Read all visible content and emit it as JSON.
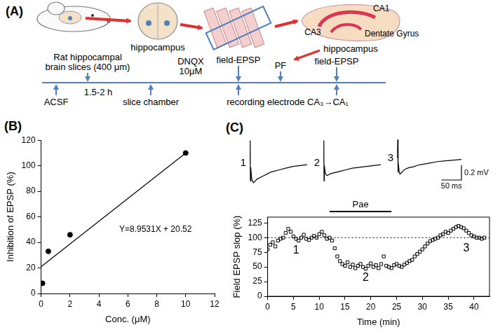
{
  "diagram": {
    "panel_label": "(A)",
    "labels": {
      "brain": "hippocampus",
      "slice": "hippocampus",
      "ca1": "CA1",
      "ca3": "CA3",
      "dentate_gyrus": "Dentate Gyrus"
    },
    "timeline": {
      "above": [
        [
          "Rat hippocampal",
          "brain slices (400 μm)"
        ],
        [
          "DNQX",
          "10μM"
        ],
        [
          "field-EPSP"
        ],
        [
          "PF"
        ],
        [
          "field-EPSP"
        ]
      ],
      "below": [
        [
          "ACSF"
        ],
        [
          "1.5-2 h"
        ],
        [
          "slice chamber"
        ],
        [
          "recording electrode CA₃→CA₁"
        ]
      ]
    }
  },
  "chart_data": [
    {
      "type": "scatter",
      "panel_label": "(B)",
      "x_label": "Conc. (μM)",
      "y_label": "Inhibition of EPSP (%)",
      "x": [
        0.1,
        0.5,
        2,
        10
      ],
      "values": [
        8,
        33,
        46,
        110
      ],
      "color": "#000000",
      "marker": "circle",
      "fit_line": {
        "x": [
          0,
          10
        ],
        "values": [
          21,
          110
        ]
      },
      "annotations": [
        {
          "text": "Y=8.9531X + 20.52",
          "x": 5.4,
          "y": 50
        }
      ],
      "xlim": [
        0,
        12
      ],
      "xticks": [
        0,
        2,
        4,
        6,
        8,
        10,
        12
      ],
      "ylim": [
        0,
        120
      ],
      "yticks": [
        0,
        20,
        40,
        60,
        80,
        100,
        120
      ],
      "grid": false
    },
    {
      "type": "line",
      "panel_label": "(C)",
      "title": "1",
      "x": [
        0,
        0.5,
        1,
        2,
        4,
        6,
        10,
        15,
        20,
        30,
        40,
        50,
        60,
        80,
        100,
        120,
        140,
        160
      ],
      "values": [
        0,
        0.25,
        -0.2,
        -0.05,
        -0.15,
        -0.2,
        -0.22,
        -0.2,
        -0.18,
        -0.16,
        -0.14,
        -0.12,
        -0.1,
        -0.08,
        -0.06,
        -0.04,
        -0.03,
        -0.02
      ],
      "color": "#000000",
      "xlim": [
        -5,
        160
      ],
      "ylim": [
        -0.3,
        0.3
      ],
      "tick_labels": false
    },
    {
      "type": "line",
      "title": "2",
      "x": [
        0,
        0.5,
        1,
        2,
        4,
        6,
        10,
        15,
        20,
        30,
        40,
        50,
        60,
        80,
        100,
        120,
        140,
        160
      ],
      "values": [
        0,
        0.25,
        -0.2,
        -0.03,
        -0.1,
        -0.13,
        -0.14,
        -0.13,
        -0.12,
        -0.11,
        -0.1,
        -0.09,
        -0.08,
        -0.06,
        -0.05,
        -0.04,
        -0.03,
        -0.02
      ],
      "color": "#000000",
      "xlim": [
        -5,
        160
      ],
      "ylim": [
        -0.3,
        0.3
      ],
      "tick_labels": false
    },
    {
      "type": "line",
      "title": "3",
      "x": [
        0,
        0.5,
        1,
        2,
        4,
        6,
        10,
        15,
        20,
        30,
        40,
        50,
        60,
        80,
        100,
        120,
        140,
        160
      ],
      "values": [
        0,
        0.25,
        -0.2,
        -0.05,
        -0.18,
        -0.22,
        -0.2,
        -0.17,
        -0.15,
        -0.13,
        -0.12,
        -0.1,
        -0.09,
        -0.07,
        -0.05,
        -0.04,
        -0.03,
        -0.02
      ],
      "color": "#000000",
      "xlim": [
        -5,
        160
      ],
      "ylim": [
        -0.3,
        0.3
      ],
      "tick_labels": false,
      "scale_bar": {
        "x": 50,
        "x_label": "50 ms",
        "y": 0.2,
        "y_label": "0.2 mV"
      }
    },
    {
      "type": "scatter",
      "x_label": "Time (min)",
      "y_label": "Field EPSP slop (%)",
      "color": "#000000",
      "marker": "square",
      "x": [
        0,
        0.5,
        1,
        1.5,
        2,
        2.5,
        3,
        3.5,
        4,
        4.5,
        5,
        5.5,
        6,
        6.5,
        7,
        7.5,
        8,
        8.5,
        9,
        9.5,
        10,
        10.5,
        11,
        11.5,
        12,
        12.5,
        13,
        13.5,
        14,
        14.5,
        15,
        15.5,
        16,
        16.5,
        17,
        17.5,
        18,
        18.5,
        19,
        19.5,
        20,
        20.5,
        21,
        21.5,
        22,
        22.5,
        23,
        23.5,
        24,
        24.5,
        25,
        25.5,
        26,
        26.5,
        27,
        27.5,
        28,
        28.5,
        29,
        29.5,
        30,
        30.5,
        31,
        31.5,
        32,
        32.5,
        33,
        33.5,
        34,
        34.5,
        35,
        35.5,
        36,
        36.5,
        37,
        37.5,
        38,
        38.5,
        39,
        39.5,
        40,
        40.5,
        41,
        41.5,
        42
      ],
      "values": [
        80,
        88,
        92,
        85,
        95,
        98,
        100,
        108,
        115,
        110,
        102,
        98,
        95,
        100,
        105,
        98,
        96,
        100,
        103,
        100,
        106,
        110,
        104,
        98,
        100,
        95,
        82,
        68,
        60,
        55,
        52,
        58,
        50,
        54,
        48,
        52,
        55,
        50,
        47,
        52,
        56,
        50,
        53,
        48,
        55,
        68,
        52,
        50,
        48,
        53,
        55,
        52,
        50,
        54,
        57,
        60,
        62,
        68,
        72,
        76,
        80,
        85,
        90,
        94,
        96,
        98,
        100,
        104,
        106,
        110,
        108,
        112,
        115,
        118,
        120,
        118,
        116,
        112,
        108,
        104,
        102,
        100,
        100,
        98,
        100
      ],
      "reference_line": 100,
      "period": {
        "text": "Pae",
        "start": 12,
        "end": 24
      },
      "annotations": [
        {
          "text": "1",
          "x": 5.5,
          "y": 78
        },
        {
          "text": "2",
          "x": 19,
          "y": 32
        },
        {
          "text": "3",
          "x": 38.5,
          "y": 82
        }
      ],
      "xlim": [
        0,
        43
      ],
      "xticks": [
        0,
        5,
        10,
        15,
        20,
        25,
        30,
        35,
        40
      ],
      "ylim": [
        0,
        135
      ],
      "yticks": [
        0,
        25,
        50,
        75,
        100,
        125
      ],
      "grid": false
    }
  ]
}
